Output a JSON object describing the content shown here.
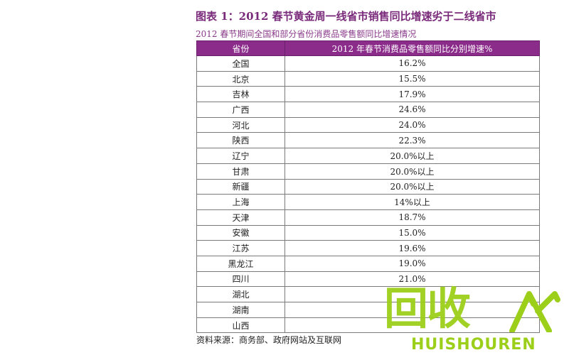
{
  "figure": {
    "title": "图表 1：2012 春节黄金周一线省市销售同比增速劣于二线省市",
    "subtitle": "2012 春节期间全国和部分省份消费品零售额同比增速情况"
  },
  "table": {
    "headers": [
      "省份",
      "2012 年春节消费品零售额同比分别增速%"
    ],
    "rows": [
      {
        "province": "全国",
        "value": "16.2%"
      },
      {
        "province": "北京",
        "value": "15.5%"
      },
      {
        "province": "吉林",
        "value": "17.9%"
      },
      {
        "province": "广西",
        "value": "24.6%"
      },
      {
        "province": "河北",
        "value": "24.0%"
      },
      {
        "province": "陕西",
        "value": "22.3%"
      },
      {
        "province": "辽宁",
        "value": "20.0%以上"
      },
      {
        "province": "甘肃",
        "value": "20.0%以上"
      },
      {
        "province": "新疆",
        "value": "20.0%以上"
      },
      {
        "province": "上海",
        "value": "14%以上"
      },
      {
        "province": "天津",
        "value": "18.7%"
      },
      {
        "province": "安徽",
        "value": "15.0%"
      },
      {
        "province": "江苏",
        "value": "19.6%"
      },
      {
        "province": "黑龙江",
        "value": "19.0%"
      },
      {
        "province": "四川",
        "value": "21.0%"
      },
      {
        "province": "湖北",
        "value": ""
      },
      {
        "province": "湖南",
        "value": ""
      },
      {
        "province": "山西",
        "value": ""
      }
    ]
  },
  "source": "资料来源：商务部、政府网站及互联网",
  "watermark": {
    "top_text": "回收",
    "bottom_text": "HUISHOUREN",
    "color": "#9ccf1a"
  },
  "colors": {
    "header_bg": "#8b2c8b",
    "title": "#7a2a7a"
  }
}
